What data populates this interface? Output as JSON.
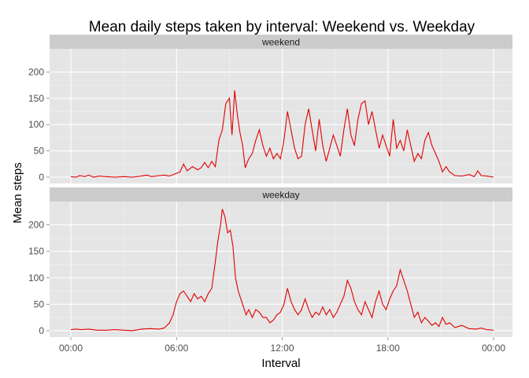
{
  "colors": {
    "panel_bg": "#e5e5e5",
    "strip_bg": "#cccccc",
    "grid_major": "#ffffff",
    "grid_minor": "#f2f2f2",
    "line": "#e00000",
    "tick_text": "#4d4d4d"
  },
  "chart_data": {
    "type": "line",
    "title": "Mean daily steps taken by interval: Weekend vs. Weekday",
    "xlabel": "Interval",
    "ylabel": "Mean steps",
    "x_unit": "hours",
    "xlim": [
      0,
      24
    ],
    "x_ticks": [
      {
        "value": 0,
        "label": "00:00"
      },
      {
        "value": 6,
        "label": "06:00"
      },
      {
        "value": 12,
        "label": "12:00"
      },
      {
        "value": 18,
        "label": "18:00"
      },
      {
        "value": 24,
        "label": "00:00"
      }
    ],
    "ylim": [
      -12,
      244
    ],
    "y_ticks": [
      0,
      50,
      100,
      150,
      200
    ],
    "grid": true,
    "facets": [
      {
        "name": "weekend",
        "points": [
          [
            0,
            1
          ],
          [
            0.3,
            0
          ],
          [
            0.5,
            3
          ],
          [
            0.8,
            1
          ],
          [
            1,
            4
          ],
          [
            1.3,
            0
          ],
          [
            1.6,
            2
          ],
          [
            2,
            1
          ],
          [
            2.5,
            0
          ],
          [
            3,
            1
          ],
          [
            3.5,
            0
          ],
          [
            4,
            2
          ],
          [
            4.3,
            4
          ],
          [
            4.6,
            1
          ],
          [
            5,
            3
          ],
          [
            5.3,
            4
          ],
          [
            5.6,
            2
          ],
          [
            5.9,
            6
          ],
          [
            6.2,
            10
          ],
          [
            6.4,
            25
          ],
          [
            6.6,
            12
          ],
          [
            6.9,
            20
          ],
          [
            7.2,
            14
          ],
          [
            7.4,
            18
          ],
          [
            7.6,
            28
          ],
          [
            7.8,
            18
          ],
          [
            8,
            30
          ],
          [
            8.2,
            20
          ],
          [
            8.4,
            70
          ],
          [
            8.6,
            90
          ],
          [
            8.8,
            140
          ],
          [
            9,
            150
          ],
          [
            9.15,
            80
          ],
          [
            9.3,
            165
          ],
          [
            9.45,
            120
          ],
          [
            9.6,
            85
          ],
          [
            9.75,
            60
          ],
          [
            9.9,
            18
          ],
          [
            10.1,
            35
          ],
          [
            10.3,
            45
          ],
          [
            10.5,
            70
          ],
          [
            10.7,
            90
          ],
          [
            10.9,
            60
          ],
          [
            11.1,
            40
          ],
          [
            11.3,
            55
          ],
          [
            11.5,
            35
          ],
          [
            11.7,
            45
          ],
          [
            11.9,
            35
          ],
          [
            12.1,
            70
          ],
          [
            12.3,
            125
          ],
          [
            12.5,
            90
          ],
          [
            12.7,
            55
          ],
          [
            12.9,
            35
          ],
          [
            13.1,
            40
          ],
          [
            13.3,
            100
          ],
          [
            13.5,
            130
          ],
          [
            13.7,
            90
          ],
          [
            13.9,
            50
          ],
          [
            14.1,
            110
          ],
          [
            14.3,
            60
          ],
          [
            14.5,
            30
          ],
          [
            14.7,
            55
          ],
          [
            14.9,
            80
          ],
          [
            15.1,
            60
          ],
          [
            15.3,
            40
          ],
          [
            15.5,
            90
          ],
          [
            15.7,
            130
          ],
          [
            15.9,
            80
          ],
          [
            16.1,
            60
          ],
          [
            16.3,
            110
          ],
          [
            16.5,
            140
          ],
          [
            16.7,
            145
          ],
          [
            16.9,
            100
          ],
          [
            17.1,
            125
          ],
          [
            17.3,
            90
          ],
          [
            17.5,
            55
          ],
          [
            17.7,
            80
          ],
          [
            17.9,
            60
          ],
          [
            18.1,
            40
          ],
          [
            18.3,
            110
          ],
          [
            18.5,
            55
          ],
          [
            18.7,
            70
          ],
          [
            18.9,
            50
          ],
          [
            19.1,
            90
          ],
          [
            19.3,
            60
          ],
          [
            19.5,
            30
          ],
          [
            19.7,
            45
          ],
          [
            19.9,
            35
          ],
          [
            20.1,
            70
          ],
          [
            20.3,
            85
          ],
          [
            20.5,
            60
          ],
          [
            20.7,
            45
          ],
          [
            20.9,
            30
          ],
          [
            21.1,
            10
          ],
          [
            21.3,
            20
          ],
          [
            21.5,
            10
          ],
          [
            21.8,
            3
          ],
          [
            22.2,
            2
          ],
          [
            22.6,
            5
          ],
          [
            22.9,
            1
          ],
          [
            23.1,
            12
          ],
          [
            23.3,
            3
          ],
          [
            23.6,
            2
          ],
          [
            24,
            0
          ]
        ]
      },
      {
        "name": "weekday",
        "points": [
          [
            0,
            2
          ],
          [
            0.3,
            3
          ],
          [
            0.6,
            2
          ],
          [
            1,
            3
          ],
          [
            1.5,
            1
          ],
          [
            2,
            1
          ],
          [
            2.5,
            2
          ],
          [
            3,
            1
          ],
          [
            3.5,
            0
          ],
          [
            4,
            3
          ],
          [
            4.5,
            4
          ],
          [
            5,
            3
          ],
          [
            5.3,
            5
          ],
          [
            5.6,
            15
          ],
          [
            5.8,
            30
          ],
          [
            6,
            55
          ],
          [
            6.2,
            70
          ],
          [
            6.4,
            75
          ],
          [
            6.6,
            65
          ],
          [
            6.8,
            55
          ],
          [
            7,
            70
          ],
          [
            7.2,
            60
          ],
          [
            7.4,
            65
          ],
          [
            7.6,
            55
          ],
          [
            7.8,
            70
          ],
          [
            8,
            80
          ],
          [
            8.2,
            130
          ],
          [
            8.35,
            170
          ],
          [
            8.5,
            200
          ],
          [
            8.6,
            230
          ],
          [
            8.75,
            215
          ],
          [
            8.9,
            185
          ],
          [
            9.05,
            190
          ],
          [
            9.2,
            160
          ],
          [
            9.35,
            100
          ],
          [
            9.5,
            75
          ],
          [
            9.65,
            60
          ],
          [
            9.8,
            45
          ],
          [
            9.95,
            30
          ],
          [
            10.1,
            40
          ],
          [
            10.3,
            25
          ],
          [
            10.5,
            40
          ],
          [
            10.7,
            35
          ],
          [
            10.9,
            25
          ],
          [
            11.1,
            25
          ],
          [
            11.3,
            15
          ],
          [
            11.5,
            20
          ],
          [
            11.7,
            30
          ],
          [
            11.9,
            35
          ],
          [
            12.1,
            50
          ],
          [
            12.3,
            80
          ],
          [
            12.5,
            55
          ],
          [
            12.7,
            40
          ],
          [
            12.9,
            30
          ],
          [
            13.1,
            40
          ],
          [
            13.3,
            60
          ],
          [
            13.5,
            40
          ],
          [
            13.7,
            25
          ],
          [
            13.9,
            35
          ],
          [
            14.1,
            30
          ],
          [
            14.3,
            45
          ],
          [
            14.5,
            30
          ],
          [
            14.7,
            40
          ],
          [
            14.9,
            25
          ],
          [
            15.1,
            35
          ],
          [
            15.3,
            50
          ],
          [
            15.5,
            65
          ],
          [
            15.7,
            95
          ],
          [
            15.9,
            80
          ],
          [
            16.1,
            55
          ],
          [
            16.3,
            40
          ],
          [
            16.5,
            30
          ],
          [
            16.7,
            55
          ],
          [
            16.9,
            40
          ],
          [
            17.1,
            25
          ],
          [
            17.3,
            55
          ],
          [
            17.5,
            75
          ],
          [
            17.7,
            50
          ],
          [
            17.9,
            40
          ],
          [
            18.1,
            60
          ],
          [
            18.3,
            75
          ],
          [
            18.5,
            85
          ],
          [
            18.7,
            115
          ],
          [
            18.9,
            95
          ],
          [
            19.1,
            75
          ],
          [
            19.3,
            50
          ],
          [
            19.5,
            25
          ],
          [
            19.7,
            35
          ],
          [
            19.9,
            15
          ],
          [
            20.1,
            25
          ],
          [
            20.3,
            18
          ],
          [
            20.5,
            10
          ],
          [
            20.7,
            15
          ],
          [
            20.9,
            8
          ],
          [
            21.1,
            25
          ],
          [
            21.3,
            12
          ],
          [
            21.5,
            15
          ],
          [
            21.8,
            6
          ],
          [
            22.2,
            10
          ],
          [
            22.6,
            4
          ],
          [
            23,
            3
          ],
          [
            23.3,
            5
          ],
          [
            23.6,
            2
          ],
          [
            24,
            1
          ]
        ]
      }
    ]
  }
}
